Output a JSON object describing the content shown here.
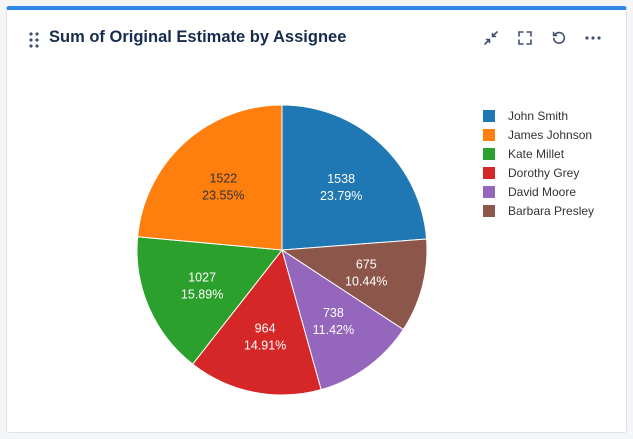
{
  "widget": {
    "title": "Sum of Original Estimate by Assignee",
    "icons": [
      "drag-handle-icon",
      "minimize-icon",
      "fullscreen-icon",
      "refresh-icon",
      "more-icon"
    ]
  },
  "chart_data": {
    "type": "pie",
    "title": "Sum of Original Estimate by Assignee",
    "legend_position": "right",
    "slices": [
      {
        "label": "John Smith",
        "value": 1538,
        "percent": "23.79%",
        "color": "#1f77b4"
      },
      {
        "label": "Barbara Presley",
        "value": 675,
        "percent": "10.44%",
        "color": "#8c564b"
      },
      {
        "label": "David Moore",
        "value": 738,
        "percent": "11.42%",
        "color": "#9467bd"
      },
      {
        "label": "Dorothy Grey",
        "value": 964,
        "percent": "14.91%",
        "color": "#d62728"
      },
      {
        "label": "Kate Millet",
        "value": 1027,
        "percent": "15.89%",
        "color": "#2ca02c"
      },
      {
        "label": "James Johnson",
        "value": 1522,
        "percent": "23.55%",
        "color": "#ff7f0e"
      }
    ],
    "legend": [
      {
        "label": "John Smith",
        "color": "#1f77b4"
      },
      {
        "label": "James Johnson",
        "color": "#ff7f0e"
      },
      {
        "label": "Kate Millet",
        "color": "#2ca02c"
      },
      {
        "label": "Dorothy Grey",
        "color": "#d62728"
      },
      {
        "label": "David Moore",
        "color": "#9467bd"
      },
      {
        "label": "Barbara Presley",
        "color": "#8c564b"
      }
    ]
  }
}
